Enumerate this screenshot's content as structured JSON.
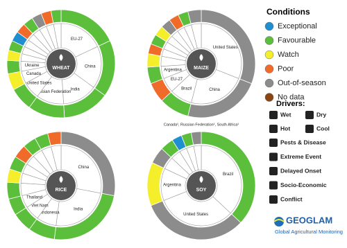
{
  "chart_data": [
    {
      "type": "donut",
      "title": "WHEAT",
      "categories": [
        "EU-27",
        "China",
        "India",
        "Russian Federation",
        "United States",
        "Canada",
        "Ukraine",
        null,
        null,
        null,
        null,
        null,
        null,
        null,
        null
      ],
      "values": [
        18,
        17,
        14,
        11,
        7,
        5,
        4,
        3,
        3,
        3,
        3,
        3,
        3,
        3,
        3
      ],
      "colors": [
        "#5cbf3c",
        "#5cbf3c",
        "#5cbf3c",
        "#5cbf3c",
        "#5cbf3c",
        "#f5ee2a",
        "#5cbf3c",
        "#f5ee2a",
        "#5cbf3c",
        "#1f8fd1",
        "#f06a2a",
        "#5cbf3c",
        "#8c8c8c",
        "#f06a2a",
        "#5cbf3c"
      ]
    },
    {
      "type": "donut",
      "title": "MAIZE",
      "categories": [
        "United States",
        "China",
        "Brazil",
        "EU-27",
        "Argentina",
        null,
        null,
        null,
        null,
        null,
        null,
        null,
        null
      ],
      "values": [
        31,
        23,
        9,
        6,
        5,
        4,
        3,
        3,
        3,
        3,
        3,
        3,
        4
      ],
      "colors": [
        "#8c8c8c",
        "#8c8c8c",
        "#5cbf3c",
        "#f06a2a",
        "#5cbf3c",
        "#f5ee2a",
        "#f06a2a",
        "#5cbf3c",
        "#f5ee2a",
        "#8c8c8c",
        "#f06a2a",
        "#5cbf3c",
        "#8c8c8c"
      ]
    },
    {
      "type": "donut",
      "title": "RICE",
      "categories": [
        "China",
        "India",
        "Indonesia",
        "Viet Nam",
        "Thailand",
        null,
        null,
        null,
        null,
        null,
        null,
        null
      ],
      "values": [
        28,
        24,
        8,
        6,
        5,
        5,
        4,
        4,
        4,
        4,
        4,
        4
      ],
      "colors": [
        "#8c8c8c",
        "#5cbf3c",
        "#5cbf3c",
        "#5cbf3c",
        "#5cbf3c",
        "#5cbf3c",
        "#f5ee2a",
        "#5cbf3c",
        "#f06a2a",
        "#5cbf3c",
        "#5cbf3c",
        "#f06a2a"
      ]
    },
    {
      "type": "donut",
      "title": "SOY",
      "categories": [
        "Brazil",
        "United States",
        "Argentina",
        null,
        null,
        null,
        null,
        null
      ],
      "values": [
        37,
        32,
        13,
        5,
        4,
        3,
        3,
        3
      ],
      "colors": [
        "#5cbf3c",
        "#8c8c8c",
        "#f5ee2a",
        "#8c8c8c",
        "#5cbf3c",
        "#1f8fd1",
        "#5cbf3c",
        "#8c8c8c"
      ],
      "note": "Canada¹, Russian Federation¹, South Africa¹"
    }
  ],
  "legend": {
    "title": "Conditions",
    "items": [
      {
        "name": "Exceptional",
        "color": "#1f8fd1"
      },
      {
        "name": "Favourable",
        "color": "#5cbf3c"
      },
      {
        "name": "Watch",
        "color": "#f5ee2a"
      },
      {
        "name": "Poor",
        "color": "#f06a2a"
      },
      {
        "name": "Out-of-season",
        "color": "#8c8c8c"
      },
      {
        "name": "No data",
        "color": "#8b4513"
      }
    ],
    "drivers_title": "Drivers:",
    "drivers": [
      "Wet",
      "Dry",
      "Hot",
      "Cool",
      "Pests & Disease",
      "Extreme Event",
      "Delayed Onset",
      "Socio-Economic",
      "Conflict"
    ]
  },
  "logo": {
    "name": "GEOGLAM",
    "subtitle": "Global Agricultural Monitoring"
  }
}
